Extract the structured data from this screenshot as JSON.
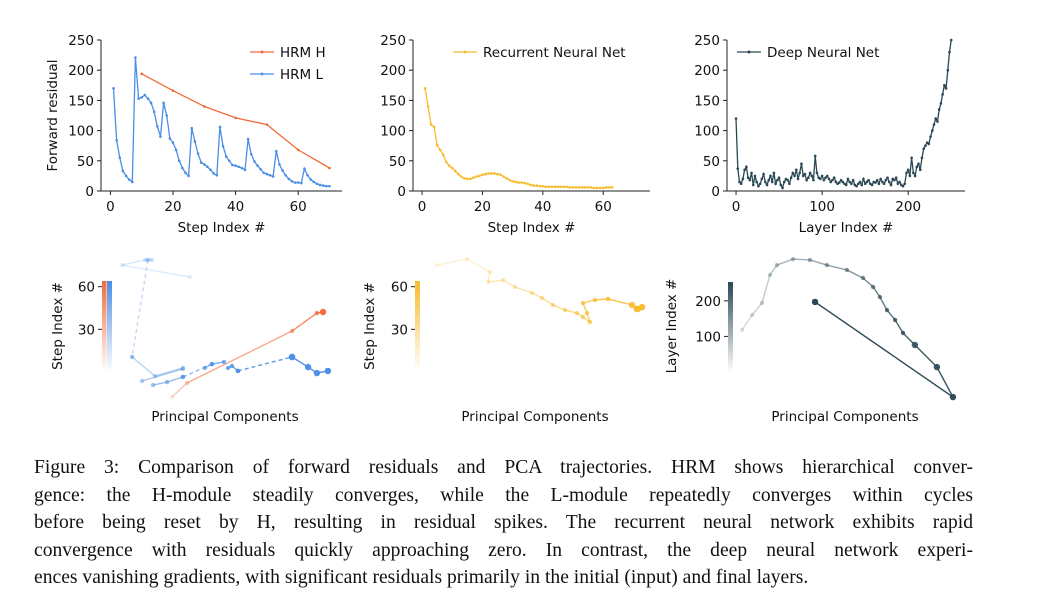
{
  "figure": {
    "caption_lines": [
      "Figure 3: Comparison of forward residuals and PCA trajectories. HRM shows hierarchical conver-",
      "gence: the H-module steadily converges, while the L-module repeatedly converges within cycles",
      "before being reset by H, resulting in residual spikes. The recurrent neural network exhibits rapid",
      "convergence with residuals quickly approaching zero. In contrast, the deep neural network experi-",
      "ences vanishing gradients, with significant residuals primarily in the initial (input) and final layers."
    ]
  },
  "colors": {
    "hrm_h": "#f26b3a",
    "hrm_l": "#4a8ee6",
    "rnn": "#f8bb2c",
    "dnn": "#2b4754"
  },
  "chart_data": [
    {
      "type": "line",
      "panel": "top-left",
      "title": "",
      "xlabel": "Step Index #",
      "ylabel": "Forward residual",
      "xlim": [
        -3,
        74
      ],
      "ylim": [
        0,
        250
      ],
      "xticks": [
        "0",
        "20",
        "40",
        "60"
      ],
      "xtick_values": [
        0,
        20,
        40,
        60
      ],
      "yticks": [
        "0",
        "50",
        "100",
        "150",
        "200",
        "250"
      ],
      "ytick_values": [
        0,
        50,
        100,
        150,
        200,
        250
      ],
      "legend_placement": "top-right",
      "series": [
        {
          "name": "HRM H",
          "color": "#f26b3a",
          "x": [
            10,
            20,
            30,
            40,
            50,
            60,
            70
          ],
          "y": [
            194,
            166,
            140,
            121,
            110,
            68,
            38
          ]
        },
        {
          "name": "HRM L",
          "color": "#4a8ee6",
          "x": [
            1,
            2,
            3,
            4,
            5,
            6,
            7,
            8,
            9,
            10,
            11,
            12,
            13,
            14,
            15,
            16,
            17,
            18,
            19,
            20,
            21,
            22,
            23,
            24,
            25,
            26,
            27,
            28,
            29,
            30,
            31,
            32,
            33,
            34,
            35,
            36,
            37,
            38,
            39,
            40,
            41,
            42,
            43,
            44,
            45,
            46,
            47,
            48,
            49,
            50,
            51,
            52,
            53,
            54,
            55,
            56,
            57,
            58,
            59,
            60,
            61,
            62,
            63,
            64,
            65,
            66,
            67,
            68,
            69,
            70
          ],
          "y": [
            170,
            84,
            55,
            33,
            25,
            19,
            15,
            221,
            153,
            155,
            159,
            153,
            146,
            131,
            107,
            90,
            146,
            125,
            87,
            80,
            68,
            50,
            38,
            30,
            25,
            104,
            82,
            62,
            47,
            44,
            40,
            35,
            29,
            26,
            106,
            74,
            57,
            50,
            43,
            42,
            40,
            38,
            35,
            86,
            61,
            49,
            42,
            36,
            30,
            28,
            26,
            24,
            66,
            44,
            34,
            26,
            20,
            16,
            14,
            14,
            13,
            37,
            26,
            19,
            15,
            12,
            10,
            9,
            8,
            8
          ]
        }
      ]
    },
    {
      "type": "line",
      "panel": "top-middle",
      "title": "",
      "xlabel": "Step Index #",
      "ylabel": "",
      "xlim": [
        -3,
        75.5
      ],
      "ylim": [
        0,
        250
      ],
      "xticks": [
        "0",
        "20",
        "40",
        "60"
      ],
      "xtick_values": [
        0,
        20,
        40,
        60
      ],
      "yticks": [
        "0",
        "50",
        "100",
        "150",
        "200",
        "250"
      ],
      "ytick_values": [
        0,
        50,
        100,
        150,
        200,
        250
      ],
      "legend_placement": "top-right",
      "series": [
        {
          "name": "Recurrent Neural Net",
          "color": "#f8bb2c",
          "x": [
            1,
            2,
            3,
            4,
            5,
            6,
            7,
            8,
            9,
            10,
            11,
            12,
            13,
            14,
            15,
            16,
            17,
            18,
            19,
            20,
            21,
            22,
            23,
            24,
            25,
            26,
            27,
            28,
            29,
            30,
            31,
            32,
            33,
            34,
            35,
            36,
            37,
            38,
            39,
            40,
            41,
            42,
            43,
            44,
            45,
            46,
            47,
            48,
            49,
            50,
            51,
            52,
            53,
            54,
            55,
            56,
            57,
            58,
            59,
            60,
            61,
            62,
            63
          ],
          "y": [
            170,
            140,
            110,
            106,
            76,
            68,
            60,
            48,
            42,
            38,
            33,
            28,
            24,
            21,
            20,
            20,
            22,
            24,
            25,
            27,
            28,
            29,
            29,
            29,
            28,
            27,
            24,
            21,
            18,
            16,
            15,
            14,
            14,
            13,
            12,
            10,
            9,
            9,
            8,
            8,
            7,
            7,
            7,
            7,
            7,
            7,
            7,
            7,
            6,
            6,
            6,
            6,
            6,
            6,
            6,
            6,
            5,
            5,
            5,
            5,
            6,
            6,
            6
          ]
        }
      ]
    },
    {
      "type": "line",
      "panel": "top-right",
      "title": "",
      "xlabel": "Layer Index #",
      "ylabel": "",
      "xlim": [
        -10.5,
        266
      ],
      "ylim": [
        0,
        250
      ],
      "xticks": [
        "0",
        "100",
        "200"
      ],
      "xtick_values": [
        0,
        100,
        200
      ],
      "yticks": [
        "0",
        "50",
        "100",
        "150",
        "200",
        "250"
      ],
      "ytick_values": [
        0,
        50,
        100,
        150,
        200,
        250
      ],
      "legend_placement": "top-left",
      "series": [
        {
          "name": "Deep Neural Net",
          "color": "#2b4754",
          "x_start": 0,
          "x_step": 2,
          "y": [
            120,
            37,
            15,
            12,
            20,
            35,
            40,
            22,
            18,
            30,
            10,
            25,
            15,
            8,
            12,
            20,
            28,
            15,
            10,
            18,
            25,
            15,
            30,
            12,
            18,
            22,
            10,
            5,
            15,
            20,
            18,
            12,
            22,
            30,
            25,
            35,
            20,
            30,
            45,
            25,
            28,
            18,
            22,
            30,
            25,
            18,
            58,
            30,
            22,
            20,
            25,
            18,
            22,
            25,
            20,
            15,
            18,
            22,
            15,
            12,
            14,
            18,
            15,
            12,
            10,
            20,
            15,
            12,
            18,
            10,
            8,
            12,
            15,
            10,
            20,
            12,
            15,
            18,
            12,
            10,
            15,
            14,
            18,
            12,
            20,
            15,
            12,
            18,
            22,
            15,
            10,
            20,
            18,
            22,
            12,
            15,
            10,
            8,
            12,
            30,
            35,
            25,
            55,
            30,
            25,
            40,
            45,
            35,
            55,
            70,
            75,
            80,
            78,
            90,
            100,
            110,
            120,
            115,
            135,
            145,
            160,
            175,
            170,
            200,
            230,
            250
          ]
        }
      ]
    },
    {
      "type": "line",
      "panel": "bottom-left",
      "kind": "pca-trajectory",
      "xlabel": "Principal Components",
      "colorbar_label": "Step Index #",
      "colorbar_ticks": [
        "30",
        "60"
      ],
      "colorbar_tick_values": [
        30,
        60
      ],
      "colorbar_range": [
        0,
        64
      ],
      "xlim": [
        0,
        100
      ],
      "ylim": [
        0,
        100
      ],
      "series": [
        {
          "name": "HRM H",
          "color": "#f26b3a",
          "segments": [
            {
              "style": "solid",
              "pc1": [
                23.6,
                30.5,
                78.2,
                89.5,
                92.3
              ],
              "pc2": [
                5.3,
                14.7,
                49.3,
                61.3,
                62
              ]
            }
          ]
        },
        {
          "name": "HRM L",
          "color": "#4a8ee6",
          "segments": [
            {
              "style": "solid",
              "pc1": [
                31.8,
                0.9,
                11.4,
                12.7,
                14.5
              ],
              "pc2": [
                85.3,
                93.3,
                96.7,
                96.7,
                96.7
              ]
            },
            {
              "style": "dashed",
              "pc1": [
                12.7,
                5.5
              ],
              "pc2": [
                96.7,
                32
              ]
            },
            {
              "style": "solid",
              "pc1": [
                5.5,
                15.9,
                28.6
              ],
              "pc2": [
                32,
                19.3,
                24.7
              ]
            },
            {
              "style": "solid",
              "pc1": [
                10,
                28.6
              ],
              "pc2": [
                16,
                24
              ]
            },
            {
              "style": "solid",
              "pc1": [
                15,
                21.4,
                28.6
              ],
              "pc2": [
                13.3,
                15.3,
                18.7
              ]
            },
            {
              "style": "dashed",
              "pc1": [
                28.6,
                41.8
              ],
              "pc2": [
                18.7,
                27.3
              ]
            },
            {
              "style": "solid",
              "pc1": [
                38.6,
                41.8,
                47.3
              ],
              "pc2": [
                24.7,
                27.3,
                28.7
              ]
            },
            {
              "style": "solid",
              "pc1": [
                49.1,
                50.9,
                53.6
              ],
              "pc2": [
                24.7,
                26,
                22.7
              ]
            },
            {
              "style": "dashed",
              "pc1": [
                53.6,
                78.2
              ],
              "pc2": [
                22.7,
                32
              ]
            },
            {
              "style": "solid",
              "pc1": [
                78.2,
                85.5,
                89.5,
                94.5
              ],
              "pc2": [
                32,
                25.3,
                21.3,
                22.7
              ]
            }
          ]
        }
      ]
    },
    {
      "type": "line",
      "panel": "bottom-middle",
      "kind": "pca-trajectory",
      "xlabel": "Principal Components",
      "colorbar_label": "Step Index #",
      "colorbar_ticks": [
        "30",
        "60"
      ],
      "colorbar_tick_values": [
        30,
        60
      ],
      "colorbar_range": [
        0,
        64
      ],
      "xlim": [
        0,
        100
      ],
      "ylim": [
        0,
        100
      ],
      "series": [
        {
          "name": "Recurrent Neural Net",
          "color": "#f8bb2c",
          "segments": [
            {
              "style": "solid",
              "pc1": [
                3.2,
                16.8,
                27.3,
                26.4,
                33.2,
                38.6,
                46.4,
                50.9,
                55.9,
                61.4,
                66.8,
                69.5,
                72.7,
                71.4,
                69.5,
                75,
                80.9,
                91.8,
                94.5,
                96.4,
                94
              ],
              "pc2": [
                93.3,
                97.3,
                88.7,
                82,
                83.3,
                78.7,
                74.7,
                71.3,
                66.7,
                63.3,
                61.3,
                58.7,
                55.3,
                61.3,
                68,
                70,
                70.7,
                66.7,
                64,
                65.3,
                64
              ]
            }
          ]
        }
      ]
    },
    {
      "type": "line",
      "panel": "bottom-right",
      "kind": "pca-trajectory",
      "xlabel": "Principal Components",
      "colorbar_label": "Layer Index #",
      "colorbar_ticks": [
        "100",
        "200"
      ],
      "colorbar_tick_values": [
        100,
        200
      ],
      "colorbar_range": [
        0,
        253
      ],
      "xlim": [
        0,
        100
      ],
      "ylim": [
        0,
        100
      ],
      "series": [
        {
          "name": "Deep Neural Net",
          "color": "#2b4754",
          "segments": [
            {
              "style": "solid",
              "pc1": [
                0.9,
                5.5,
                10,
                13.6,
                16.8,
                24.1,
                31.8,
                39.5,
                48.6,
                55.9,
                60.5,
                63.6,
                66.8,
                70.5,
                74.1,
                79.5,
                89.5,
                96.8,
                34.1
              ],
              "pc2": [
                50,
                60,
                68,
                86.7,
                93.3,
                97.3,
                96.7,
                93.3,
                90,
                84.7,
                78.7,
                72,
                63.3,
                56.7,
                48,
                40,
                25.3,
                5.3,
                68.7
              ]
            }
          ]
        }
      ]
    }
  ]
}
